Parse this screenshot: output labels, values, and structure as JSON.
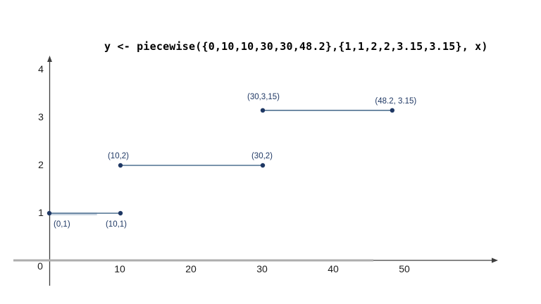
{
  "title": "y <- piecewise({0,10,10,30,30,48.2},{1,1,2,2,3.15,3.15}, x)",
  "chart_data": {
    "type": "line",
    "subtype": "piecewise-step-segments",
    "title": "y <- piecewise({0,10,10,30,30,48.2},{1,1,2,2,3.15,3.15}, x)",
    "xlabel": "",
    "ylabel": "",
    "xlim": [
      0,
      63
    ],
    "ylim": [
      0,
      4.3
    ],
    "grid": false,
    "legend": false,
    "x_ticks": [
      10,
      20,
      30,
      40,
      50
    ],
    "y_ticks": [
      1,
      2,
      3,
      4
    ],
    "origin_label": "0",
    "segments": [
      {
        "name": "piece-1",
        "from": {
          "x": 0,
          "y": 1,
          "label": "(0,1)",
          "label_dx": 6,
          "label_dy": 19,
          "label_anchor": "start"
        },
        "to": {
          "x": 10,
          "y": 1,
          "label": "(10,1)",
          "label_dx": -6,
          "label_dy": 19,
          "label_anchor": "middle"
        },
        "highlight_to_x": 6.7
      },
      {
        "name": "piece-2",
        "from": {
          "x": 10,
          "y": 2,
          "label": "(10,2)",
          "label_dx": -3,
          "label_dy": -10,
          "label_anchor": "middle"
        },
        "to": {
          "x": 30,
          "y": 2,
          "label": "(30,2)",
          "label_dx": -1,
          "label_dy": -10,
          "label_anchor": "middle"
        }
      },
      {
        "name": "piece-3",
        "from": {
          "x": 30,
          "y": 3.15,
          "label": "(30,3,15)",
          "label_dx": 1,
          "label_dy": -16,
          "label_anchor": "middle"
        },
        "to": {
          "x": 48.2,
          "y": 3.15,
          "label": "(48.2, 3.15)",
          "label_dx": 5,
          "label_dy": -10,
          "label_anchor": "middle"
        }
      }
    ],
    "colors": {
      "point": "#1f3864",
      "segment": "#4f7191",
      "segment_highlight": "#ccd6e2",
      "axis": "#3f3f3f",
      "axis_overlay_gray": "#adadad",
      "point_label": "#1f3864",
      "tick_label": "#1c1c1c",
      "title": "#000000"
    }
  }
}
